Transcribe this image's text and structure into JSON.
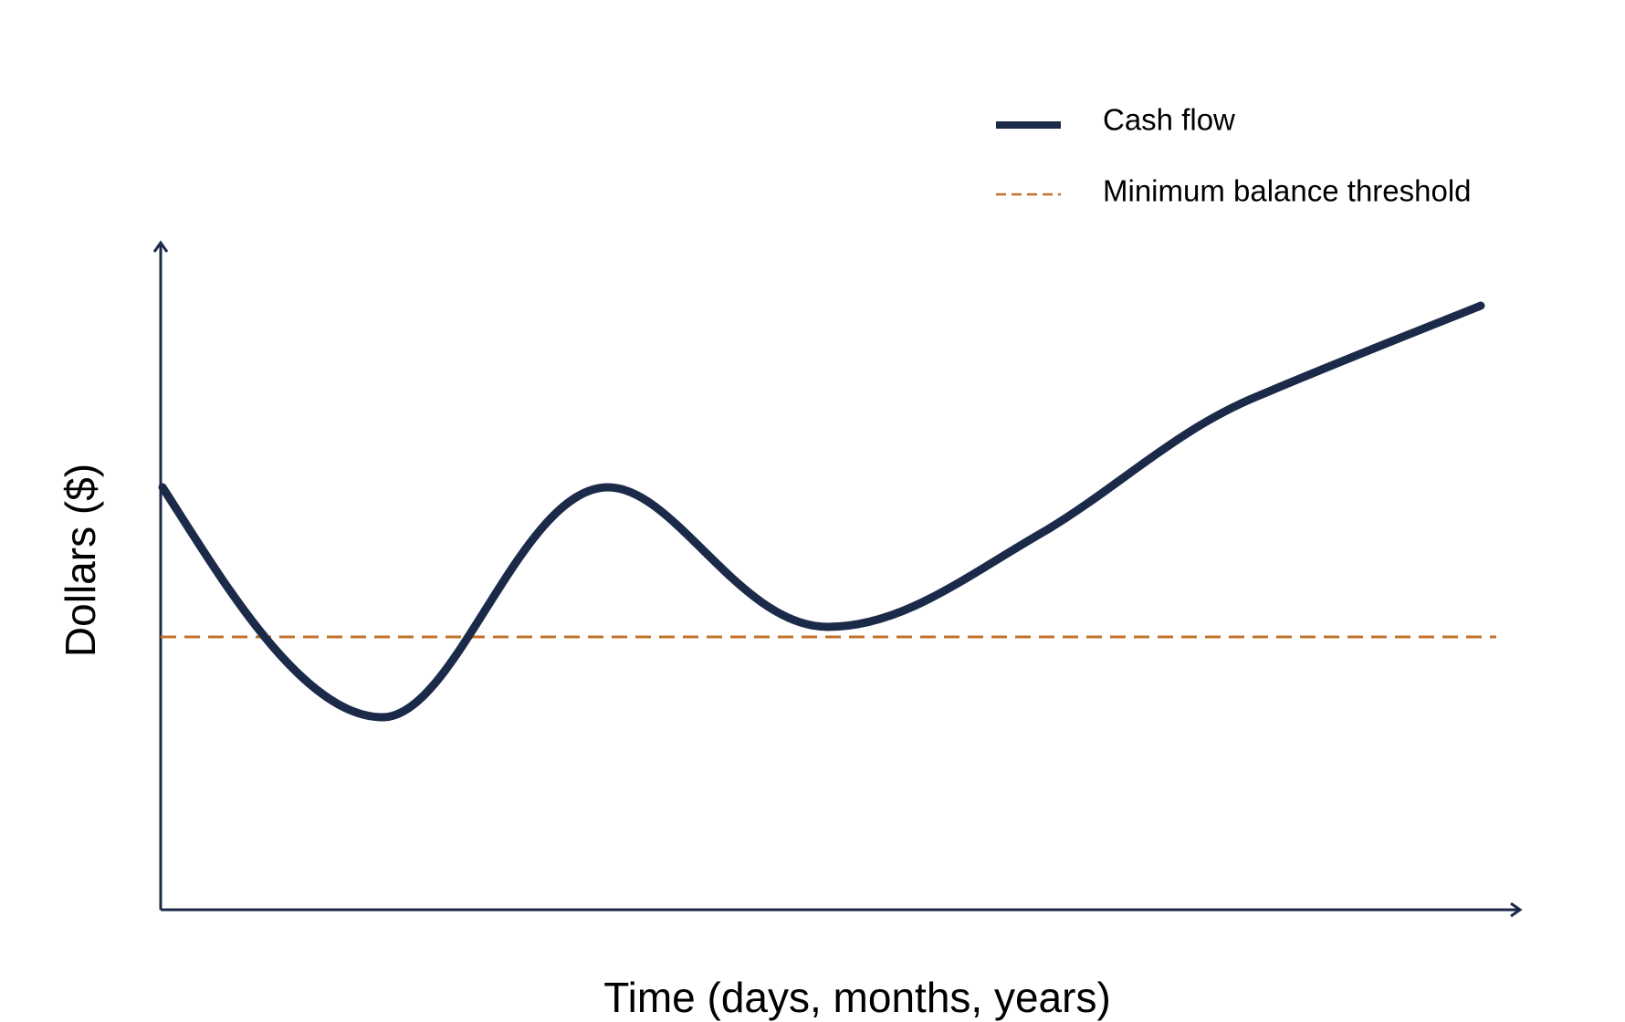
{
  "chart_data": {
    "type": "line",
    "x_label": "Time (days, months, years)",
    "y_label": "Dollars ($)",
    "series": [
      {
        "name": "Cash flow",
        "color": "#1c2a4a"
      },
      {
        "name": "Minimum balance threshold",
        "color": "#c0732a"
      }
    ]
  }
}
